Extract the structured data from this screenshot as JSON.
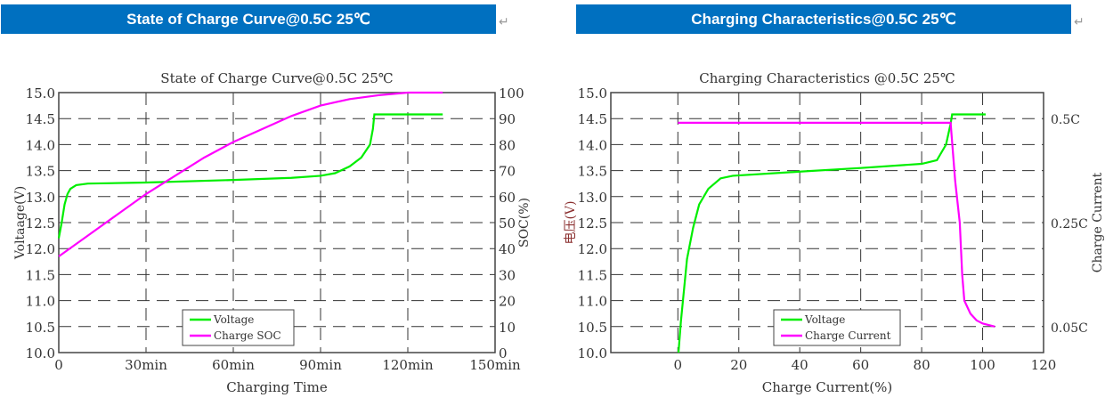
{
  "headers": [
    {
      "text": "State of Charge Curve@0.5C  25℃",
      "return_mark": "↵"
    },
    {
      "text": "Charging Characteristics@0.5C  25℃",
      "return_mark": "↵"
    }
  ],
  "colors": {
    "header_bg": "#0070C0",
    "voltage": "#00EE00",
    "secondary": "#FF00FF",
    "grid": "#333333"
  },
  "chart_data": [
    {
      "type": "line",
      "title": "State of Charge Curve@0.5C 25℃",
      "xlabel": "Charging Time",
      "ylabel": "Voltaage(V)",
      "y2label": "SOC(%)",
      "xlim": [
        0,
        150
      ],
      "ylim": [
        10,
        15
      ],
      "y2lim": [
        0,
        100
      ],
      "xticks": [
        0,
        30,
        60,
        90,
        120,
        150
      ],
      "xtick_labels": [
        "0",
        "30min",
        "60min",
        "90min",
        "120min",
        "150min"
      ],
      "yticks": [
        "10.0",
        "10.5",
        "11.0",
        "11.5",
        "12.0",
        "12.5",
        "13.0",
        "13.5",
        "14.0",
        "14.5",
        "15.0"
      ],
      "y2ticks": [
        "0",
        "10",
        "20",
        "30",
        "40",
        "50",
        "60",
        "70",
        "80",
        "90",
        "100"
      ],
      "grid": true,
      "legend_placement": "bottom-center",
      "series": [
        {
          "name": "Voltage",
          "axis": "left",
          "color": "#00EE00",
          "x": [
            0,
            1,
            2,
            3,
            4,
            6,
            10,
            30,
            60,
            80,
            90,
            95,
            100,
            104,
            107,
            108,
            108.5,
            132
          ],
          "y": [
            12.2,
            12.5,
            12.85,
            13.05,
            13.15,
            13.22,
            13.25,
            13.27,
            13.32,
            13.36,
            13.4,
            13.45,
            13.58,
            13.75,
            14.0,
            14.3,
            14.58,
            14.58
          ]
        },
        {
          "name": "Charge SOC",
          "axis": "right",
          "color": "#FF00FF",
          "x": [
            0,
            10,
            20,
            30,
            40,
            50,
            60,
            70,
            80,
            90,
            100,
            110,
            120,
            132
          ],
          "y": [
            37,
            45,
            53,
            61,
            68,
            75,
            81,
            86,
            91,
            95,
            97.5,
            99,
            100,
            100
          ]
        }
      ]
    },
    {
      "type": "line",
      "title": "Charging Characteristics @0.5C 25℃",
      "xlabel": "Charge Current(%)",
      "ylabel": "电压(V)",
      "y2label": "Charge Current",
      "xlim": [
        -22,
        120
      ],
      "ylim": [
        10,
        15
      ],
      "xticks": [
        0,
        20,
        40,
        60,
        80,
        100,
        120
      ],
      "xtick_labels": [
        "0",
        "20",
        "40",
        "60",
        "80",
        "100",
        "120"
      ],
      "yticks": [
        "10.0",
        "10.5",
        "11.0",
        "11.5",
        "12.0",
        "12.5",
        "13.0",
        "13.5",
        "14.0",
        "14.5",
        "15.0"
      ],
      "y2ticks": [
        {
          "label": "0.05C",
          "value": 0.05,
          "at_left": 10.5
        },
        {
          "label": "0.25C",
          "value": 0.25,
          "at_left": 12.5
        },
        {
          "label": "0.5C",
          "value": 0.5,
          "at_left": 14.5
        }
      ],
      "grid": true,
      "legend_placement": "bottom-center",
      "series": [
        {
          "name": "Voltage",
          "axis": "left",
          "color": "#00EE00",
          "x": [
            0.2,
            1,
            2,
            3,
            5,
            7,
            10,
            14,
            18,
            40,
            60,
            80,
            85,
            88,
            89.5,
            90,
            101
          ],
          "y": [
            10.0,
            10.6,
            11.2,
            11.8,
            12.4,
            12.85,
            13.15,
            13.35,
            13.4,
            13.48,
            13.55,
            13.63,
            13.7,
            14.0,
            14.4,
            14.58,
            14.58
          ]
        },
        {
          "name": "Charge Current",
          "axis": "right",
          "color": "#FF00FF",
          "x": [
            0,
            89.5,
            91,
            92.5,
            93.3,
            94,
            96,
            98,
            100,
            104
          ],
          "y": [
            0.49,
            0.49,
            0.35,
            0.25,
            0.15,
            0.1,
            0.075,
            0.062,
            0.056,
            0.05
          ]
        }
      ]
    }
  ]
}
